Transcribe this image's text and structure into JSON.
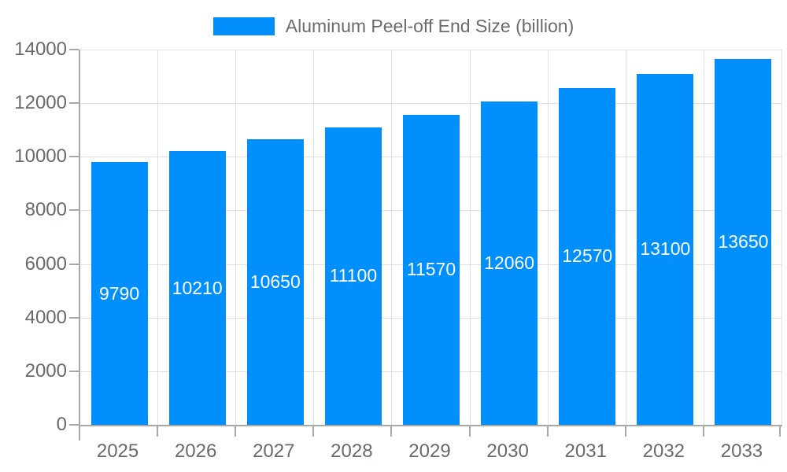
{
  "chart_data": {
    "type": "bar",
    "title": "Aluminum Peel-off End Size (billion)",
    "categories": [
      "2025",
      "2026",
      "2027",
      "2028",
      "2029",
      "2030",
      "2031",
      "2032",
      "2033"
    ],
    "values": [
      9790,
      10210,
      10650,
      11100,
      11570,
      12060,
      12570,
      13100,
      13650
    ],
    "xlabel": "",
    "ylabel": "",
    "ylim": [
      0,
      14000
    ],
    "ytick_step": 2000,
    "ytick_labels": [
      "0",
      "2000",
      "4000",
      "6000",
      "8000",
      "10000",
      "12000",
      "14000"
    ],
    "grid": true,
    "legend_position": "top-center",
    "bar_color": "#008FFB",
    "bar_label_color": "#ffffff",
    "axis_line_color": "#a8a8a8",
    "gridline_color": "#e0e0e0",
    "axis_text_color": "#666a6e",
    "legend_text_color": "#6b6b6b"
  },
  "legend": {
    "label": "Aluminum Peel-off End Size (billion)"
  }
}
